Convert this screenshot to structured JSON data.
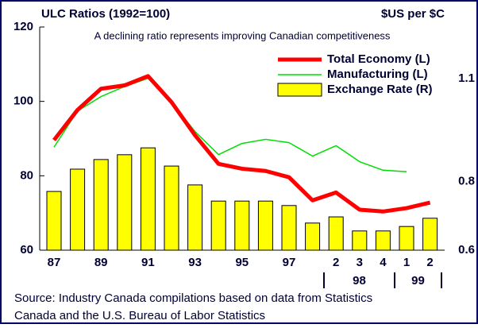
{
  "chart_data": {
    "type": "bar_line",
    "title": "ULC Ratios (1992=100)",
    "y2_title": "$US per $C",
    "subtitle": "A declining ratio represents improving Canadian competitiveness",
    "categories": [
      "87",
      null,
      "89",
      null,
      "91",
      null,
      "93",
      null,
      "95",
      null,
      "97",
      null,
      "2",
      "3",
      "4",
      "1",
      "2"
    ],
    "x_groups": [
      "98",
      "99"
    ],
    "ylim": [
      60,
      120
    ],
    "yticks": [
      60,
      80,
      100,
      120
    ],
    "y2lim": [
      0.6,
      1.25
    ],
    "y2ticks": [
      0.6,
      0.8,
      1.1
    ],
    "series": [
      {
        "name": "Total Economy (L)",
        "type": "line",
        "color": "#ff0000",
        "values": [
          89.6,
          97.7,
          103.4,
          104.3,
          106.8,
          99.8,
          90.9,
          83.2,
          81.9,
          81.3,
          79.6,
          73.4,
          75.5,
          70.9,
          70.4,
          71.3,
          72.8
        ]
      },
      {
        "name": "Manufacturing (L)",
        "type": "line",
        "color": "#00dd00",
        "values": [
          87.7,
          97.4,
          101.3,
          104.0,
          106.2,
          99.8,
          91.9,
          85.7,
          88.7,
          89.8,
          88.9,
          85.3,
          88.1,
          83.8,
          81.5,
          81.1,
          null
        ]
      },
      {
        "name": "Exchange Rate (R)",
        "type": "bar",
        "axis": "y2",
        "color": "#ffff00",
        "values": [
          0.771,
          0.836,
          0.864,
          0.878,
          0.898,
          0.845,
          0.79,
          0.743,
          0.743,
          0.743,
          0.73,
          0.679,
          0.697,
          0.656,
          0.656,
          0.669,
          0.693
        ]
      }
    ],
    "source": [
      "Source: Industry Canada compilations based on data from Statistics",
      "Canada and the U.S. Bureau of Labor Statistics"
    ]
  }
}
